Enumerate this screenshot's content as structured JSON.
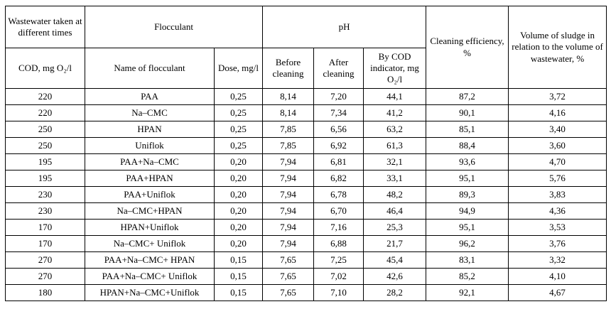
{
  "table": {
    "header": {
      "wastewater_group": "Wastewater taken at different times",
      "flocculant_group": "Flocculant",
      "ph_group": "pH",
      "cleaning_efficiency": "Cleaning efficiency, %",
      "sludge_volume": "Volume of sludge in relation to the volume of wastewater, %",
      "cod": "COD, mg O₂/l",
      "floc_name": "Name of flocculant",
      "dose": "Dose, mg/l",
      "before_cleaning": "Before cleaning",
      "after_cleaning": "After cleaning",
      "by_cod_indicator": "By COD indicator, mg O₂/l"
    },
    "rows": [
      [
        "220",
        "PAA",
        "0,25",
        "8,14",
        "7,20",
        "44,1",
        "87,2",
        "3,72"
      ],
      [
        "220",
        "Na–CMC",
        "0,25",
        "8,14",
        "7,34",
        "41,2",
        "90,1",
        "4,16"
      ],
      [
        "250",
        "HPAN",
        "0,25",
        "7,85",
        "6,56",
        "63,2",
        "85,1",
        "3,40"
      ],
      [
        "250",
        "Uniflok",
        "0,25",
        "7,85",
        "6,92",
        "61,3",
        "88,4",
        "3,60"
      ],
      [
        "195",
        "PAA+Na–CMC",
        "0,20",
        "7,94",
        "6,81",
        "32,1",
        "93,6",
        "4,70"
      ],
      [
        "195",
        "PAA+HPAN",
        "0,20",
        "7,94",
        "6,82",
        "33,1",
        "95,1",
        "5,76"
      ],
      [
        "230",
        "PAA+Uniflok",
        "0,20",
        "7,94",
        "6,78",
        "48,2",
        "89,3",
        "3,83"
      ],
      [
        "230",
        "Na–CMC+HPAN",
        "0,20",
        "7,94",
        "6,70",
        "46,4",
        "94,9",
        "4,36"
      ],
      [
        "170",
        "HPAN+Uniflok",
        "0,20",
        "7,94",
        "7,16",
        "25,3",
        "95,1",
        "3,53"
      ],
      [
        "170",
        "Na–CMC+ Uniflok",
        "0,20",
        "7,94",
        "6,88",
        "21,7",
        "96,2",
        "3,76"
      ],
      [
        "270",
        "PAA+Na–CMC+ HPAN",
        "0,15",
        "7,65",
        "7,25",
        "45,4",
        "83,1",
        "3,32"
      ],
      [
        "270",
        "PAA+Na–CMC+ Uniflok",
        "0,15",
        "7,65",
        "7,02",
        "42,6",
        "85,2",
        "4,10"
      ],
      [
        "180",
        "HPAN+Na–CMC+Uniflok",
        "0,15",
        "7,65",
        "7,10",
        "28,2",
        "92,1",
        "4,67"
      ]
    ]
  }
}
